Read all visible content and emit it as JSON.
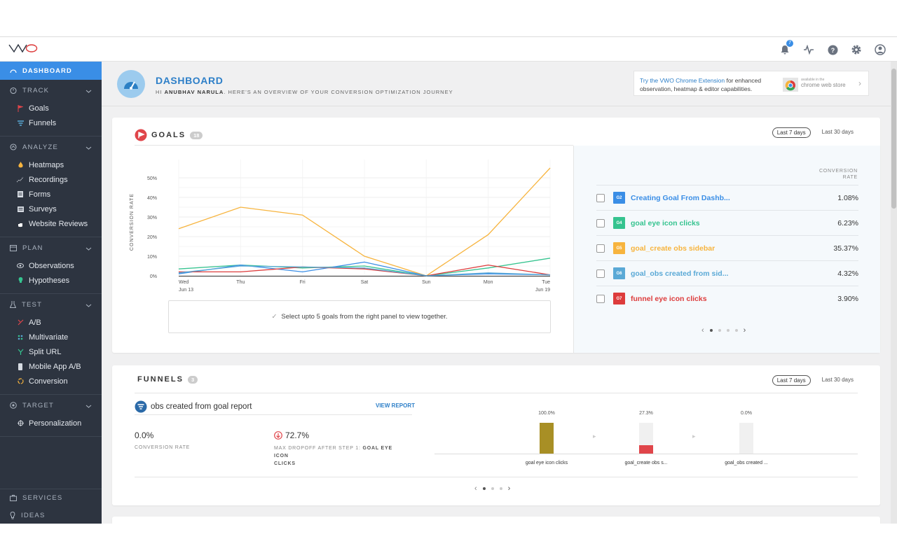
{
  "app": {
    "logo_text": "VWO"
  },
  "topbar": {
    "notif_count": "7"
  },
  "sidebar": {
    "active": "DASHBOARD",
    "sections": [
      {
        "label": "TRACK",
        "items": [
          "Goals",
          "Funnels"
        ]
      },
      {
        "label": "ANALYZE",
        "items": [
          "Heatmaps",
          "Recordings",
          "Forms",
          "Surveys",
          "Website Reviews"
        ]
      },
      {
        "label": "PLAN",
        "items": [
          "Observations",
          "Hypotheses"
        ]
      },
      {
        "label": "TEST",
        "items": [
          "A/B",
          "Multivariate",
          "Split URL",
          "Mobile App A/B",
          "Conversion"
        ]
      },
      {
        "label": "TARGET",
        "items": [
          "Personalization"
        ]
      }
    ],
    "bottom": [
      "SERVICES",
      "IDEAS"
    ]
  },
  "header": {
    "title": "DASHBOARD",
    "greeting_prefix": "HI ",
    "user": "ANUBHAV NARULA",
    "greeting_suffix": ". HERE'S AN OVERVIEW OF YOUR CONVERSION OPTIMIZATION JOURNEY",
    "promo_link": "Try the VWO Chrome Extension",
    "promo_text1": " for enhanced",
    "promo_text2": "observation, heatmap & editor capabilities.",
    "store_small": "available in the",
    "store_big": "chrome web store"
  },
  "goals": {
    "title": "GOALS",
    "count": "18",
    "range_active": "Last 7 days",
    "range_other": "Last 30 days",
    "note": "Select upto 5 goals from the right panel to view together.",
    "cr_header_1": "CONVERSION",
    "cr_header_2": "RATE",
    "list": [
      {
        "tag": "G2",
        "name": "Creating Goal From Dashb...",
        "value": "1.08%",
        "color": "#3a8ee6"
      },
      {
        "tag": "G4",
        "name": "goal eye icon clicks",
        "value": "6.23%",
        "color": "#35c38f"
      },
      {
        "tag": "G5",
        "name": "goal_create obs sidebar",
        "value": "35.37%",
        "color": "#f7b43e"
      },
      {
        "tag": "G6",
        "name": "goal_obs created from sid...",
        "value": "4.32%",
        "color": "#5aa9d6"
      },
      {
        "tag": "G7",
        "name": "funnel eye icon clicks",
        "value": "3.90%",
        "color": "#dd3c3c"
      }
    ]
  },
  "chart_data": {
    "type": "line",
    "ylabel": "CONVERSION RATE",
    "categories": [
      "Wed",
      "Thu",
      "Fri",
      "Sat",
      "Sun",
      "Mon",
      "Tue"
    ],
    "date_labels": [
      "Jun 13",
      "",
      "",
      "",
      "",
      "",
      "Jun 19"
    ],
    "yticks": [
      "0%",
      "10%",
      "20%",
      "30%",
      "40%",
      "50%"
    ],
    "ylim": [
      0,
      55
    ],
    "series": [
      {
        "color": "#f7b43e",
        "values": [
          24,
          35,
          31,
          10,
          0,
          21,
          55
        ]
      },
      {
        "color": "#35c38f",
        "values": [
          3.5,
          5.5,
          4,
          5,
          0,
          4,
          9
        ]
      },
      {
        "color": "#3a8ee6",
        "values": [
          1,
          5.5,
          2,
          7,
          0,
          1,
          0.5
        ]
      },
      {
        "color": "#dd3c3c",
        "values": [
          2,
          2,
          4.5,
          3.5,
          0,
          5.5,
          0.5
        ]
      },
      {
        "color": "#5aa9d6",
        "values": [
          1.5,
          5,
          4.5,
          4,
          0,
          1.5,
          0.5
        ]
      }
    ]
  },
  "funnels": {
    "title": "FUNNELS",
    "count": "3",
    "range_active": "Last 7 days",
    "range_other": "Last 30 days",
    "name": "obs created from goal report",
    "view_report": "VIEW REPORT",
    "conv_value": "0.0%",
    "conv_label": "CONVERSION RATE",
    "drop_value": "72.7%",
    "drop_label_prefix": "MAX DROPOFF AFTER STEP 1: ",
    "drop_label_step": "GOAL EYE ICON",
    "drop_label_step2": "CLICKS",
    "steps": [
      {
        "pct": "100.0%",
        "name": "goal eye icon clicks",
        "fill": 1.0,
        "color": "#a88f25"
      },
      {
        "pct": "27.3%",
        "name": "goal_create obs s...",
        "fill": 0.273,
        "color": "#e0454a"
      },
      {
        "pct": "0.0%",
        "name": "goal_obs created ...",
        "fill": 0.0,
        "color": "#e0454a"
      }
    ]
  }
}
